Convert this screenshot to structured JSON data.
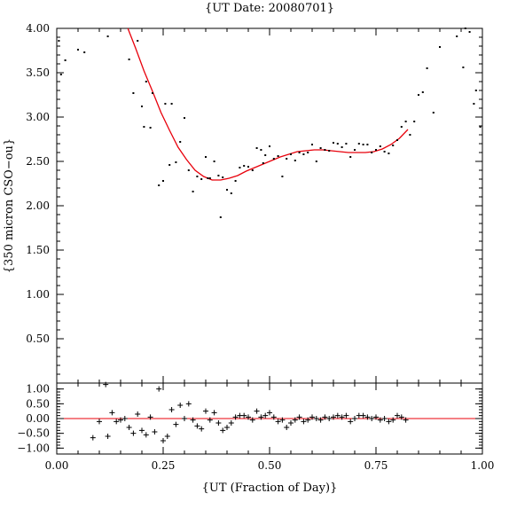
{
  "chart_data": [
    {
      "type": "scatter",
      "panel": "main",
      "title": "{UT Date: 20080701}",
      "xlabel": "",
      "ylabel": "{350 micron CSO−ou}",
      "xlim": [
        0.0,
        1.0
      ],
      "ylim": [
        0.0,
        4.0
      ],
      "yticks": [
        "4.00",
        "3.50",
        "3.00",
        "2.50",
        "2.00",
        "1.50",
        "1.00",
        "0.50"
      ],
      "y_tick_values": [
        4.0,
        3.5,
        3.0,
        2.5,
        2.0,
        1.5,
        1.0,
        0.5
      ],
      "grid": false,
      "marker_color": "#000000",
      "fit_color": "#e8000b",
      "fit_x": [
        0.167,
        0.185,
        0.205,
        0.225,
        0.245,
        0.265,
        0.285,
        0.305,
        0.325,
        0.345,
        0.365,
        0.385,
        0.405,
        0.425,
        0.445,
        0.465,
        0.485,
        0.505,
        0.525,
        0.545,
        0.565,
        0.585,
        0.605,
        0.625,
        0.645,
        0.665,
        0.685,
        0.705,
        0.725,
        0.745,
        0.765,
        0.785,
        0.805,
        0.825
      ],
      "fit_y": [
        4.0,
        3.78,
        3.52,
        3.29,
        3.05,
        2.85,
        2.66,
        2.52,
        2.4,
        2.33,
        2.29,
        2.29,
        2.31,
        2.34,
        2.39,
        2.43,
        2.47,
        2.51,
        2.55,
        2.58,
        2.61,
        2.62,
        2.63,
        2.63,
        2.62,
        2.61,
        2.6,
        2.6,
        2.6,
        2.61,
        2.64,
        2.69,
        2.76,
        2.86
      ],
      "points_x": [
        0.005,
        0.01,
        0.02,
        0.05,
        0.065,
        0.12,
        0.17,
        0.18,
        0.19,
        0.2,
        0.205,
        0.21,
        0.22,
        0.225,
        0.24,
        0.25,
        0.255,
        0.265,
        0.27,
        0.28,
        0.29,
        0.3,
        0.31,
        0.32,
        0.33,
        0.34,
        0.35,
        0.355,
        0.36,
        0.37,
        0.38,
        0.385,
        0.39,
        0.4,
        0.41,
        0.42,
        0.43,
        0.44,
        0.45,
        0.46,
        0.47,
        0.48,
        0.485,
        0.49,
        0.5,
        0.51,
        0.52,
        0.53,
        0.54,
        0.55,
        0.56,
        0.57,
        0.58,
        0.59,
        0.6,
        0.61,
        0.62,
        0.63,
        0.64,
        0.65,
        0.66,
        0.67,
        0.68,
        0.69,
        0.7,
        0.71,
        0.72,
        0.73,
        0.74,
        0.75,
        0.76,
        0.77,
        0.78,
        0.79,
        0.8,
        0.81,
        0.82,
        0.83,
        0.84,
        0.85,
        0.86,
        0.87,
        0.885,
        0.9,
        0.94,
        0.955,
        0.96,
        0.97,
        0.98,
        0.985,
        0.995
      ],
      "points_y": [
        3.86,
        3.48,
        3.64,
        3.76,
        3.73,
        3.91,
        3.65,
        3.27,
        3.86,
        3.12,
        2.89,
        3.4,
        2.88,
        3.27,
        2.23,
        2.28,
        3.15,
        2.46,
        3.15,
        2.49,
        2.72,
        2.99,
        2.4,
        2.16,
        2.33,
        2.3,
        2.55,
        2.31,
        2.31,
        2.5,
        2.34,
        1.87,
        2.32,
        2.18,
        2.14,
        2.28,
        2.43,
        2.45,
        2.44,
        2.4,
        2.65,
        2.63,
        2.48,
        2.57,
        2.67,
        2.53,
        2.56,
        2.33,
        2.53,
        2.58,
        2.51,
        2.6,
        2.58,
        2.6,
        2.69,
        2.5,
        2.65,
        2.63,
        2.62,
        2.71,
        2.7,
        2.66,
        2.7,
        2.55,
        2.63,
        2.7,
        2.69,
        2.69,
        2.6,
        2.63,
        2.67,
        2.61,
        2.59,
        2.68,
        2.74,
        2.89,
        2.95,
        2.8,
        2.95,
        3.25,
        3.28,
        3.55,
        3.05,
        3.79,
        3.91,
        3.56,
        4.0,
        3.96,
        3.15,
        3.3,
        2.89,
        2.8,
        3.07
      ]
    },
    {
      "type": "scatter",
      "panel": "residuals",
      "xlabel": "{UT (Fraction of Day)}",
      "ylabel": "",
      "xlim": [
        0.0,
        1.0
      ],
      "ylim": [
        -1.2,
        1.2
      ],
      "xticks": [
        "0.00",
        "0.25",
        "0.50",
        "0.75",
        "1.00"
      ],
      "x_tick_values": [
        0.0,
        0.25,
        0.5,
        0.75,
        1.0
      ],
      "yticks": [
        "1.00",
        "0.50",
        "0.00",
        "−0.50",
        "−1.00"
      ],
      "y_tick_values": [
        1.0,
        0.5,
        0.0,
        -0.5,
        -1.0
      ],
      "zero_line": true,
      "zero_line_color": "#e8000b",
      "points_x": [
        0.085,
        0.1,
        0.115,
        0.12,
        0.13,
        0.14,
        0.15,
        0.16,
        0.17,
        0.18,
        0.19,
        0.2,
        0.21,
        0.22,
        0.23,
        0.24,
        0.25,
        0.26,
        0.27,
        0.28,
        0.29,
        0.3,
        0.31,
        0.32,
        0.33,
        0.34,
        0.35,
        0.36,
        0.37,
        0.38,
        0.39,
        0.4,
        0.41,
        0.42,
        0.43,
        0.44,
        0.45,
        0.46,
        0.47,
        0.48,
        0.49,
        0.5,
        0.51,
        0.52,
        0.53,
        0.54,
        0.55,
        0.56,
        0.57,
        0.58,
        0.59,
        0.6,
        0.61,
        0.62,
        0.63,
        0.64,
        0.65,
        0.66,
        0.67,
        0.68,
        0.69,
        0.7,
        0.71,
        0.72,
        0.73,
        0.74,
        0.75,
        0.76,
        0.77,
        0.78,
        0.79,
        0.8,
        0.81,
        0.82
      ],
      "points_y": [
        -0.65,
        -0.1,
        1.15,
        -0.6,
        0.2,
        -0.1,
        -0.05,
        0.0,
        -0.3,
        -0.5,
        0.15,
        -0.4,
        -0.55,
        0.05,
        -0.45,
        1.0,
        -0.75,
        -0.6,
        0.3,
        -0.2,
        0.45,
        0.0,
        0.5,
        -0.05,
        -0.25,
        -0.35,
        0.25,
        -0.05,
        0.2,
        -0.15,
        -0.4,
        -0.3,
        -0.15,
        0.05,
        0.1,
        0.1,
        0.05,
        -0.05,
        0.25,
        0.05,
        0.1,
        0.2,
        0.05,
        -0.1,
        -0.05,
        -0.3,
        -0.15,
        -0.05,
        0.05,
        -0.1,
        -0.05,
        0.05,
        0.0,
        -0.05,
        0.05,
        0.0,
        0.05,
        0.1,
        0.05,
        0.1,
        -0.1,
        0.0,
        0.1,
        0.1,
        0.05,
        0.0,
        0.05,
        -0.05,
        0.0,
        -0.1,
        -0.05,
        0.1,
        0.05,
        -0.05
      ]
    }
  ]
}
